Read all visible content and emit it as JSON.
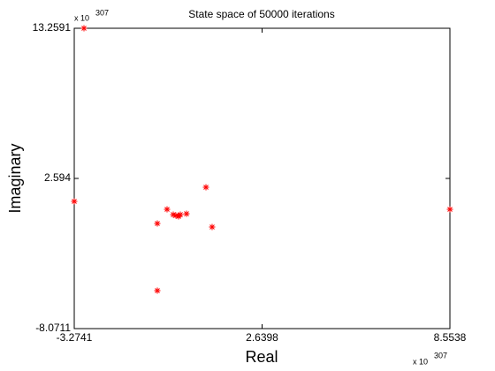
{
  "chart_data": {
    "type": "scatter",
    "title": "State space of 50000 iterations",
    "x_label": "Real",
    "y_label": "Imaginary",
    "x_exponent_base": "x 10",
    "x_exponent": "307",
    "y_exponent_base": "x 10",
    "y_exponent": "307",
    "xlim": [
      -3.2741,
      8.5538
    ],
    "xticks": [
      -3.2741,
      2.6398,
      8.5538
    ],
    "ylim": [
      -8.0711,
      13.2591
    ],
    "yticks": [
      -8.0711,
      2.594,
      13.2591
    ],
    "series": [
      {
        "color": "#ff0000",
        "x": [
          -2.968,
          -3.274,
          8.554,
          -0.658,
          -0.658,
          -0.352,
          -0.157,
          -0.074,
          0.01,
          0.066,
          0.26,
          0.873,
          1.067
        ],
        "values": [
          13.259,
          0.962,
          0.397,
          -0.606,
          -5.375,
          0.397,
          0.021,
          -0.042,
          -0.105,
          0.021,
          0.084,
          1.966,
          -0.858
        ]
      }
    ]
  }
}
